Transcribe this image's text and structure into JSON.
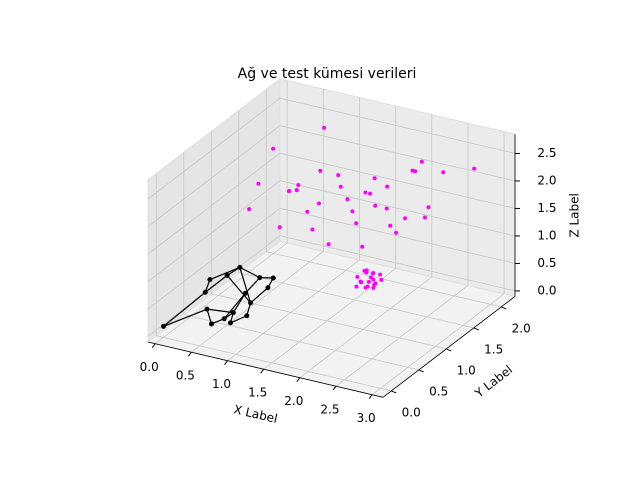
{
  "chart_data": {
    "type": "scatter3d",
    "title": "Ağ ve test kümesi verileri",
    "xlabel": "X Label",
    "ylabel": "Y Label",
    "zlabel": "Z Label",
    "xlim": [
      -0.1,
      3.15
    ],
    "ylim": [
      -0.15,
      2.25
    ],
    "zlim": [
      -0.1,
      2.85
    ],
    "xticks": [
      {
        "value": 0,
        "label": "0.0"
      },
      {
        "value": 0.5,
        "label": "0.5"
      },
      {
        "value": 1,
        "label": "1.0"
      },
      {
        "value": 1.5,
        "label": "1.5"
      },
      {
        "value": 2,
        "label": "2.0"
      },
      {
        "value": 2.5,
        "label": "2.5"
      },
      {
        "value": 3,
        "label": "3.0"
      }
    ],
    "yticks": [
      {
        "value": 0,
        "label": "0.0"
      },
      {
        "value": 0.5,
        "label": "0.5"
      },
      {
        "value": 1,
        "label": "1.0"
      },
      {
        "value": 1.5,
        "label": "1.5"
      },
      {
        "value": 2,
        "label": "2.0"
      }
    ],
    "zticks": [
      {
        "value": 0,
        "label": "0.0"
      },
      {
        "value": 0.5,
        "label": "0.5"
      },
      {
        "value": 1,
        "label": "1.0"
      },
      {
        "value": 1.5,
        "label": "1.5"
      },
      {
        "value": 2,
        "label": "2.0"
      },
      {
        "value": 2.5,
        "label": "2.5"
      }
    ],
    "grid": true,
    "series": [
      {
        "color": "#ff00ff",
        "x": [
          1.75,
          1.82,
          1.9,
          1.7,
          1.85,
          1.78,
          1.95,
          1.68,
          1.8,
          1.88,
          1.73,
          1.92,
          1.83,
          1.77,
          1.86,
          1.71,
          1.9,
          1.8,
          1.84,
          1.76,
          0.4,
          0.6,
          0.8,
          1.0,
          1.2,
          1.4,
          1.6,
          1.8,
          2.0,
          2.2,
          2.5,
          2.7,
          0.5,
          0.9,
          1.3,
          1.7,
          2.1,
          2.4,
          0.7,
          1.1,
          1.5,
          1.9,
          2.3,
          0.3,
          1.0,
          1.6,
          2.0,
          2.6,
          0.8,
          1.2,
          1.45,
          1.75,
          2.15,
          0.55,
          1.35,
          1.95
        ],
        "y": [
          1.3,
          1.38,
          1.32,
          1.42,
          1.28,
          1.35,
          1.4,
          1.3,
          1.45,
          1.36,
          1.25,
          1.33,
          1.41,
          1.37,
          1.29,
          1.34,
          1.44,
          1.31,
          1.39,
          1.27,
          1.2,
          1.5,
          1.8,
          1.3,
          1.6,
          2.0,
          1.4,
          1.7,
          1.9,
          1.5,
          1.8,
          2.1,
          0.9,
          1.1,
          1.0,
          1.2,
          1.3,
          1.6,
          2.0,
          1.9,
          1.7,
          2.2,
          1.1,
          1.6,
          0.8,
          0.9,
          1.6,
          1.4,
          1.4,
          1.25,
          1.85,
          1.55,
          1.75,
          1.7,
          1.45,
          1.05
        ],
        "z": [
          0.45,
          0.5,
          0.38,
          0.55,
          0.42,
          0.6,
          0.48,
          0.35,
          0.52,
          0.4,
          0.58,
          0.46,
          0.44,
          0.62,
          0.5,
          0.41,
          0.53,
          0.36,
          0.57,
          0.49,
          1.9,
          1.6,
          1.8,
          1.5,
          2.0,
          1.7,
          1.4,
          1.9,
          2.1,
          1.6,
          2.3,
          2.2,
          1.7,
          2.0,
          1.5,
          1.8,
          1.9,
          1.6,
          2.4,
          1.3,
          1.7,
          2.0,
          1.8,
          2.2,
          1.6,
          1.4,
          1.2,
          2.0,
          1.85,
          1.75,
          1.55,
          1.65,
          2.25,
          1.45,
          1.95,
          1.35
        ]
      },
      {
        "color": "#000000",
        "x": [
          0.0,
          0.35,
          0.5,
          0.6,
          0.8,
          0.9,
          0.45,
          0.7,
          0.95,
          1.1,
          0.55,
          0.65,
          0.3,
          0.85,
          1.0,
          0.75
        ],
        "y": [
          0.0,
          0.3,
          0.5,
          0.6,
          0.7,
          0.4,
          0.2,
          0.35,
          0.65,
          0.55,
          0.15,
          0.25,
          0.45,
          0.1,
          0.2,
          0.5
        ],
        "z": [
          0.1,
          0.6,
          0.8,
          0.9,
          0.7,
          0.5,
          0.4,
          0.3,
          0.6,
          0.9,
          0.2,
          0.25,
          0.7,
          0.35,
          0.45,
          0.55
        ],
        "edges": [
          [
            0,
            1
          ],
          [
            0,
            6
          ],
          [
            1,
            2
          ],
          [
            2,
            3
          ],
          [
            3,
            4
          ],
          [
            4,
            9
          ],
          [
            9,
            8
          ],
          [
            8,
            5
          ],
          [
            5,
            2
          ],
          [
            1,
            12
          ],
          [
            12,
            3
          ],
          [
            6,
            10
          ],
          [
            10,
            11
          ],
          [
            11,
            7
          ],
          [
            7,
            13
          ],
          [
            13,
            14
          ],
          [
            14,
            5
          ],
          [
            7,
            15
          ],
          [
            15,
            4
          ],
          [
            6,
            7
          ],
          [
            3,
            5
          ],
          [
            11,
            15
          ]
        ]
      }
    ]
  }
}
